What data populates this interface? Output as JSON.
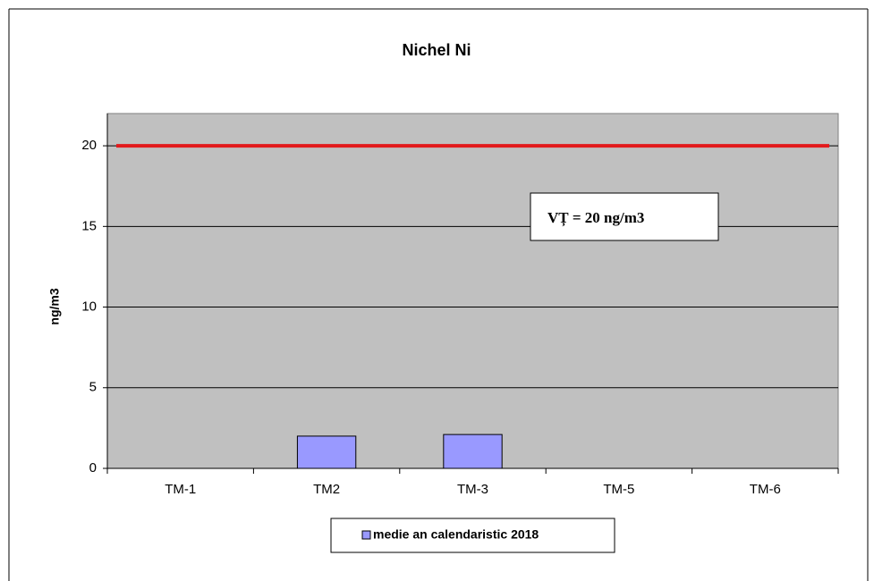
{
  "chart_data": {
    "type": "bar",
    "title": "Nichel Ni",
    "y_label": "ng/m3",
    "categories": [
      "TM-1",
      "TM2",
      "TM-3",
      "TM-5",
      "TM-6"
    ],
    "series": [
      {
        "name": "medie an calendaristic 2018",
        "color": "#9999ff",
        "values": [
          null,
          2.0,
          2.1,
          null,
          null
        ]
      }
    ],
    "threshold": {
      "value": 20,
      "color": "#e31a1c"
    },
    "annotation": "VȚ = 20 ng/m3",
    "ylim": [
      0,
      22
    ],
    "yticks": [
      0,
      5,
      10,
      15,
      20
    ],
    "grid": true
  }
}
